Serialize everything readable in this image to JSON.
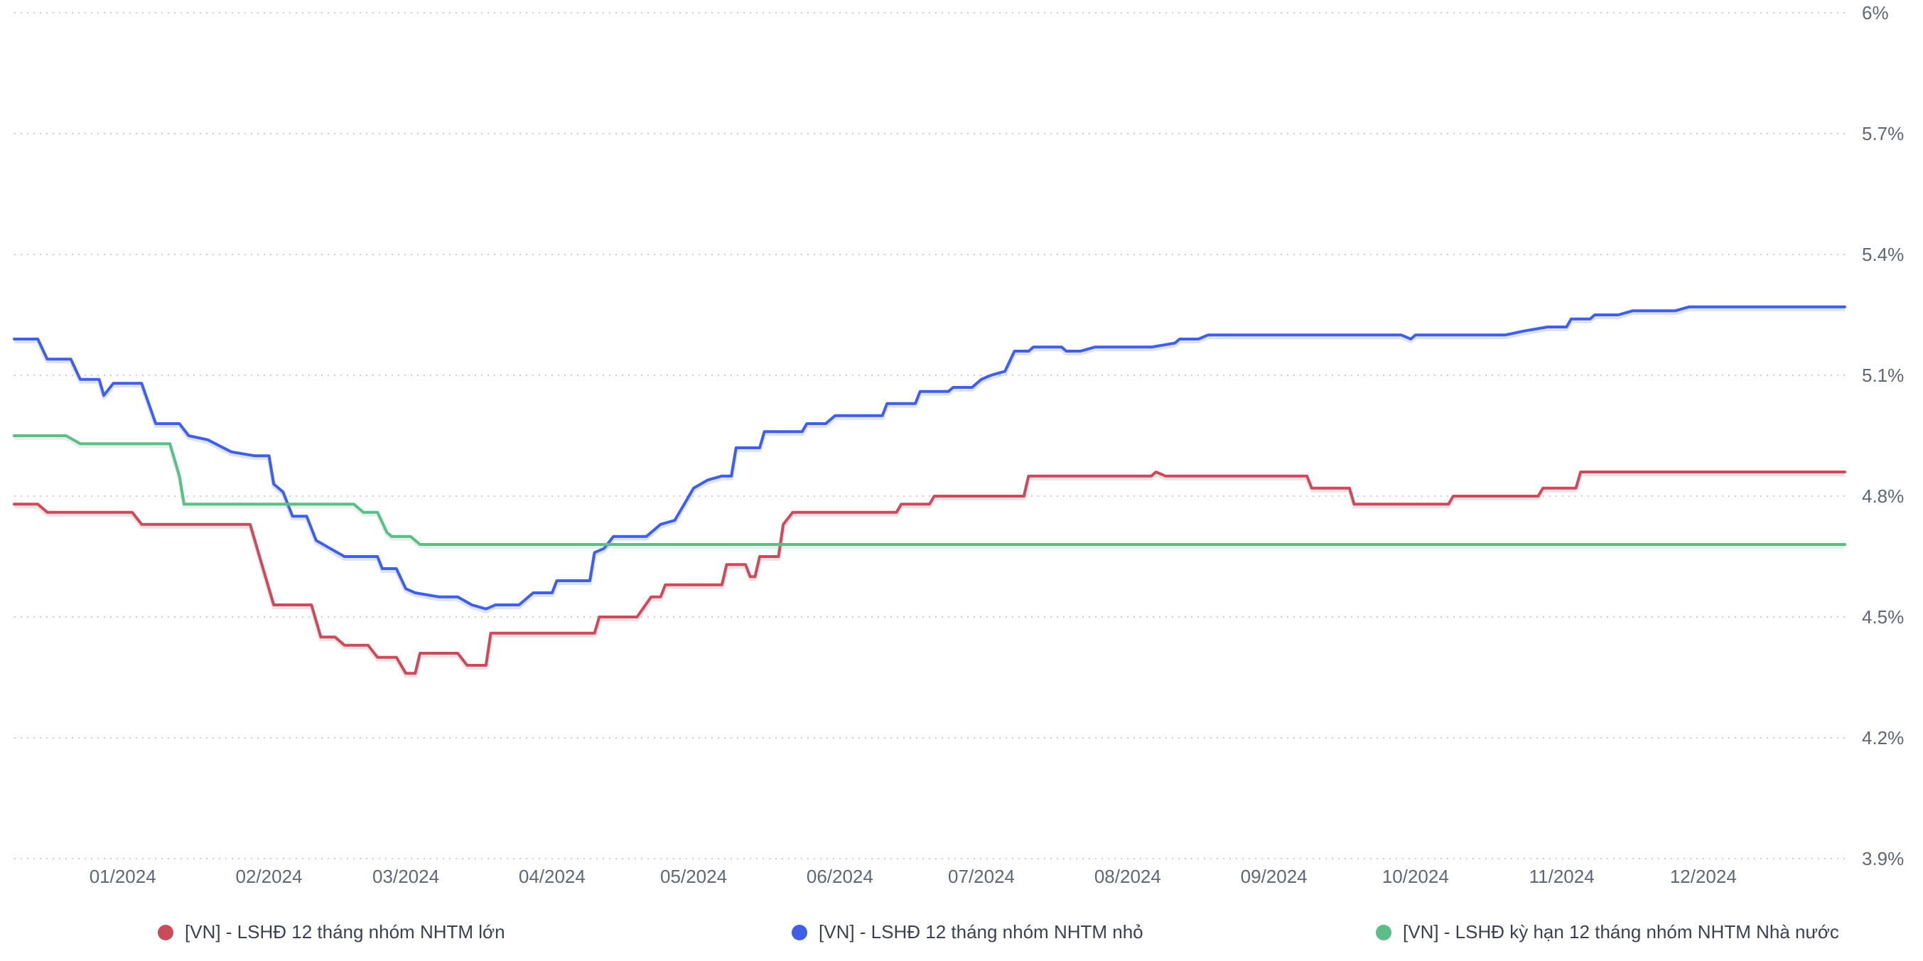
{
  "chart_data": {
    "type": "line",
    "y_ticks": [
      "6%",
      "5.7%",
      "5.4%",
      "5.1%",
      "4.8%",
      "4.5%",
      "4.2%",
      "3.9%"
    ],
    "ylim": [
      3.9,
      6.0
    ],
    "xlim": [
      "2023-12-09",
      "2024-12-31"
    ],
    "x_ticks": [
      {
        "date": "2024-01-01",
        "label": "01/2024"
      },
      {
        "date": "2024-02-01",
        "label": "02/2024"
      },
      {
        "date": "2024-03-01",
        "label": "03/2024"
      },
      {
        "date": "2024-04-01",
        "label": "04/2024"
      },
      {
        "date": "2024-05-01",
        "label": "05/2024"
      },
      {
        "date": "2024-06-01",
        "label": "06/2024"
      },
      {
        "date": "2024-07-01",
        "label": "07/2024"
      },
      {
        "date": "2024-08-01",
        "label": "08/2024"
      },
      {
        "date": "2024-09-01",
        "label": "09/2024"
      },
      {
        "date": "2024-10-01",
        "label": "10/2024"
      },
      {
        "date": "2024-11-01",
        "label": "11/2024"
      },
      {
        "date": "2024-12-01",
        "label": "12/2024"
      }
    ],
    "grid": true,
    "legend_position": "bottom",
    "series": [
      {
        "name": "[VN] - LSHĐ 12 tháng nhóm NHTM lớn",
        "color": "#c94c5d",
        "points": [
          [
            "2023-12-09",
            4.78
          ],
          [
            "2023-12-14",
            4.78
          ],
          [
            "2023-12-16",
            4.76
          ],
          [
            "2024-01-03",
            4.76
          ],
          [
            "2024-01-05",
            4.73
          ],
          [
            "2024-01-28",
            4.73
          ],
          [
            "2024-01-30",
            4.65
          ],
          [
            "2024-02-02",
            4.53
          ],
          [
            "2024-02-10",
            4.53
          ],
          [
            "2024-02-12",
            4.45
          ],
          [
            "2024-02-15",
            4.45
          ],
          [
            "2024-02-17",
            4.43
          ],
          [
            "2024-02-22",
            4.43
          ],
          [
            "2024-02-24",
            4.4
          ],
          [
            "2024-02-28",
            4.4
          ],
          [
            "2024-03-01",
            4.36
          ],
          [
            "2024-03-03",
            4.36
          ],
          [
            "2024-03-04",
            4.41
          ],
          [
            "2024-03-12",
            4.41
          ],
          [
            "2024-03-14",
            4.38
          ],
          [
            "2024-03-18",
            4.38
          ],
          [
            "2024-03-19",
            4.46
          ],
          [
            "2024-04-10",
            4.46
          ],
          [
            "2024-04-11",
            4.5
          ],
          [
            "2024-04-19",
            4.5
          ],
          [
            "2024-04-22",
            4.55
          ],
          [
            "2024-04-24",
            4.55
          ],
          [
            "2024-04-25",
            4.58
          ],
          [
            "2024-05-07",
            4.58
          ],
          [
            "2024-05-08",
            4.63
          ],
          [
            "2024-05-12",
            4.63
          ],
          [
            "2024-05-13",
            4.6
          ],
          [
            "2024-05-14",
            4.6
          ],
          [
            "2024-05-15",
            4.65
          ],
          [
            "2024-05-19",
            4.65
          ],
          [
            "2024-05-20",
            4.73
          ],
          [
            "2024-05-22",
            4.76
          ],
          [
            "2024-06-13",
            4.76
          ],
          [
            "2024-06-14",
            4.78
          ],
          [
            "2024-06-20",
            4.78
          ],
          [
            "2024-06-21",
            4.8
          ],
          [
            "2024-07-10",
            4.8
          ],
          [
            "2024-07-11",
            4.85
          ],
          [
            "2024-08-06",
            4.85
          ],
          [
            "2024-08-07",
            4.86
          ],
          [
            "2024-08-09",
            4.85
          ],
          [
            "2024-09-08",
            4.85
          ],
          [
            "2024-09-09",
            4.82
          ],
          [
            "2024-09-17",
            4.82
          ],
          [
            "2024-09-18",
            4.78
          ],
          [
            "2024-10-08",
            4.78
          ],
          [
            "2024-10-09",
            4.8
          ],
          [
            "2024-10-27",
            4.8
          ],
          [
            "2024-10-28",
            4.82
          ],
          [
            "2024-11-04",
            4.82
          ],
          [
            "2024-11-05",
            4.86
          ],
          [
            "2024-12-31",
            4.86
          ]
        ]
      },
      {
        "name": "[VN] - LSHĐ 12 tháng nhóm NHTM nhỏ",
        "color": "#3e5fe6",
        "points": [
          [
            "2023-12-09",
            5.19
          ],
          [
            "2023-12-14",
            5.19
          ],
          [
            "2023-12-16",
            5.14
          ],
          [
            "2023-12-21",
            5.14
          ],
          [
            "2023-12-23",
            5.09
          ],
          [
            "2023-12-27",
            5.09
          ],
          [
            "2023-12-28",
            5.05
          ],
          [
            "2023-12-30",
            5.08
          ],
          [
            "2024-01-05",
            5.08
          ],
          [
            "2024-01-08",
            4.98
          ],
          [
            "2024-01-13",
            4.98
          ],
          [
            "2024-01-15",
            4.95
          ],
          [
            "2024-01-19",
            4.94
          ],
          [
            "2024-01-24",
            4.91
          ],
          [
            "2024-01-29",
            4.9
          ],
          [
            "2024-02-01",
            4.9
          ],
          [
            "2024-02-02",
            4.83
          ],
          [
            "2024-02-04",
            4.81
          ],
          [
            "2024-02-06",
            4.75
          ],
          [
            "2024-02-09",
            4.75
          ],
          [
            "2024-02-11",
            4.69
          ],
          [
            "2024-02-14",
            4.67
          ],
          [
            "2024-02-17",
            4.65
          ],
          [
            "2024-02-24",
            4.65
          ],
          [
            "2024-02-25",
            4.62
          ],
          [
            "2024-02-28",
            4.62
          ],
          [
            "2024-03-01",
            4.57
          ],
          [
            "2024-03-03",
            4.56
          ],
          [
            "2024-03-08",
            4.55
          ],
          [
            "2024-03-12",
            4.55
          ],
          [
            "2024-03-15",
            4.53
          ],
          [
            "2024-03-18",
            4.52
          ],
          [
            "2024-03-20",
            4.53
          ],
          [
            "2024-03-25",
            4.53
          ],
          [
            "2024-03-28",
            4.56
          ],
          [
            "2024-04-01",
            4.56
          ],
          [
            "2024-04-02",
            4.59
          ],
          [
            "2024-04-09",
            4.59
          ],
          [
            "2024-04-10",
            4.66
          ],
          [
            "2024-04-12",
            4.67
          ],
          [
            "2024-04-14",
            4.7
          ],
          [
            "2024-04-21",
            4.7
          ],
          [
            "2024-04-24",
            4.73
          ],
          [
            "2024-04-27",
            4.74
          ],
          [
            "2024-05-01",
            4.82
          ],
          [
            "2024-05-04",
            4.84
          ],
          [
            "2024-05-07",
            4.85
          ],
          [
            "2024-05-09",
            4.85
          ],
          [
            "2024-05-10",
            4.92
          ],
          [
            "2024-05-15",
            4.92
          ],
          [
            "2024-05-16",
            4.96
          ],
          [
            "2024-05-24",
            4.96
          ],
          [
            "2024-05-25",
            4.98
          ],
          [
            "2024-05-29",
            4.98
          ],
          [
            "2024-05-31",
            5.0
          ],
          [
            "2024-06-04",
            5.0
          ],
          [
            "2024-06-10",
            5.0
          ],
          [
            "2024-06-11",
            5.03
          ],
          [
            "2024-06-17",
            5.03
          ],
          [
            "2024-06-18",
            5.06
          ],
          [
            "2024-06-24",
            5.06
          ],
          [
            "2024-06-25",
            5.07
          ],
          [
            "2024-06-29",
            5.07
          ],
          [
            "2024-07-01",
            5.09
          ],
          [
            "2024-07-03",
            5.1
          ],
          [
            "2024-07-06",
            5.11
          ],
          [
            "2024-07-08",
            5.16
          ],
          [
            "2024-07-11",
            5.16
          ],
          [
            "2024-07-12",
            5.17
          ],
          [
            "2024-07-18",
            5.17
          ],
          [
            "2024-07-19",
            5.16
          ],
          [
            "2024-07-22",
            5.16
          ],
          [
            "2024-07-25",
            5.17
          ],
          [
            "2024-08-06",
            5.17
          ],
          [
            "2024-08-11",
            5.18
          ],
          [
            "2024-08-12",
            5.19
          ],
          [
            "2024-08-16",
            5.19
          ],
          [
            "2024-08-18",
            5.2
          ],
          [
            "2024-09-01",
            5.2
          ],
          [
            "2024-09-25",
            5.2
          ],
          [
            "2024-09-28",
            5.2
          ],
          [
            "2024-09-30",
            5.19
          ],
          [
            "2024-10-01",
            5.2
          ],
          [
            "2024-10-20",
            5.2
          ],
          [
            "2024-10-24",
            5.21
          ],
          [
            "2024-10-29",
            5.22
          ],
          [
            "2024-11-02",
            5.22
          ],
          [
            "2024-11-03",
            5.24
          ],
          [
            "2024-11-07",
            5.24
          ],
          [
            "2024-11-08",
            5.25
          ],
          [
            "2024-11-13",
            5.25
          ],
          [
            "2024-11-16",
            5.26
          ],
          [
            "2024-11-20",
            5.26
          ],
          [
            "2024-11-25",
            5.26
          ],
          [
            "2024-11-28",
            5.27
          ],
          [
            "2024-12-31",
            5.27
          ]
        ]
      },
      {
        "name": "[VN] - LSHĐ kỳ hạn 12 tháng nhóm NHTM Nhà nước",
        "color": "#5cbd87",
        "points": [
          [
            "2023-12-09",
            4.95
          ],
          [
            "2023-12-20",
            4.95
          ],
          [
            "2023-12-23",
            4.93
          ],
          [
            "2024-01-11",
            4.93
          ],
          [
            "2024-01-13",
            4.85
          ],
          [
            "2024-01-14",
            4.78
          ],
          [
            "2024-02-19",
            4.78
          ],
          [
            "2024-02-21",
            4.76
          ],
          [
            "2024-02-24",
            4.76
          ],
          [
            "2024-02-26",
            4.71
          ],
          [
            "2024-02-27",
            4.7
          ],
          [
            "2024-03-02",
            4.7
          ],
          [
            "2024-03-04",
            4.68
          ],
          [
            "2024-12-31",
            4.68
          ]
        ]
      }
    ]
  }
}
